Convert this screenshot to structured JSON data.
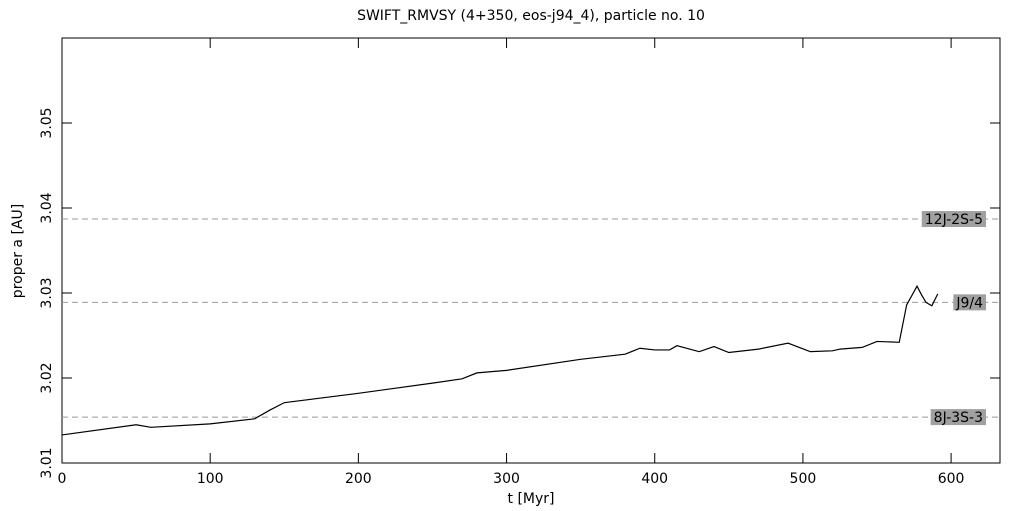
{
  "chart_data": {
    "type": "line",
    "title": "SWIFT_RMVSY (4+350, eos-j94_4), particle no. 10",
    "xlabel": "t [Myr]",
    "ylabel": "proper a [AU]",
    "x": [
      0,
      50,
      60,
      100,
      130,
      140,
      150,
      200,
      250,
      270,
      280,
      300,
      350,
      380,
      390,
      400,
      410,
      415,
      430,
      440,
      450,
      470,
      490,
      505,
      520,
      525,
      540,
      550,
      565,
      570,
      577,
      580,
      583,
      587,
      591
    ],
    "values": [
      3.0133,
      3.0145,
      3.0142,
      3.0146,
      3.0152,
      3.0162,
      3.0171,
      3.0182,
      3.0194,
      3.0199,
      3.0206,
      3.0209,
      3.0222,
      3.0228,
      3.0235,
      3.0233,
      3.0233,
      3.0238,
      3.0231,
      3.0237,
      3.023,
      3.0234,
      3.0241,
      3.0231,
      3.0232,
      3.0234,
      3.0236,
      3.0243,
      3.0242,
      3.0286,
      3.0308,
      3.0298,
      3.0289,
      3.0285,
      3.0299
    ],
    "color": "#000000",
    "resonances": [
      {
        "label": "12J-2S-5",
        "value": 3.0387
      },
      {
        "label": "J9/4",
        "value": 3.0289
      },
      {
        "label": "8J-3S-3",
        "value": 3.0154
      }
    ],
    "xlim": [
      0,
      633
    ],
    "xticks": [
      0,
      100,
      200,
      300,
      400,
      500,
      600
    ],
    "ylim": [
      3.01,
      3.06
    ],
    "yticks": [
      3.01,
      3.02,
      3.03,
      3.04,
      3.05
    ]
  }
}
